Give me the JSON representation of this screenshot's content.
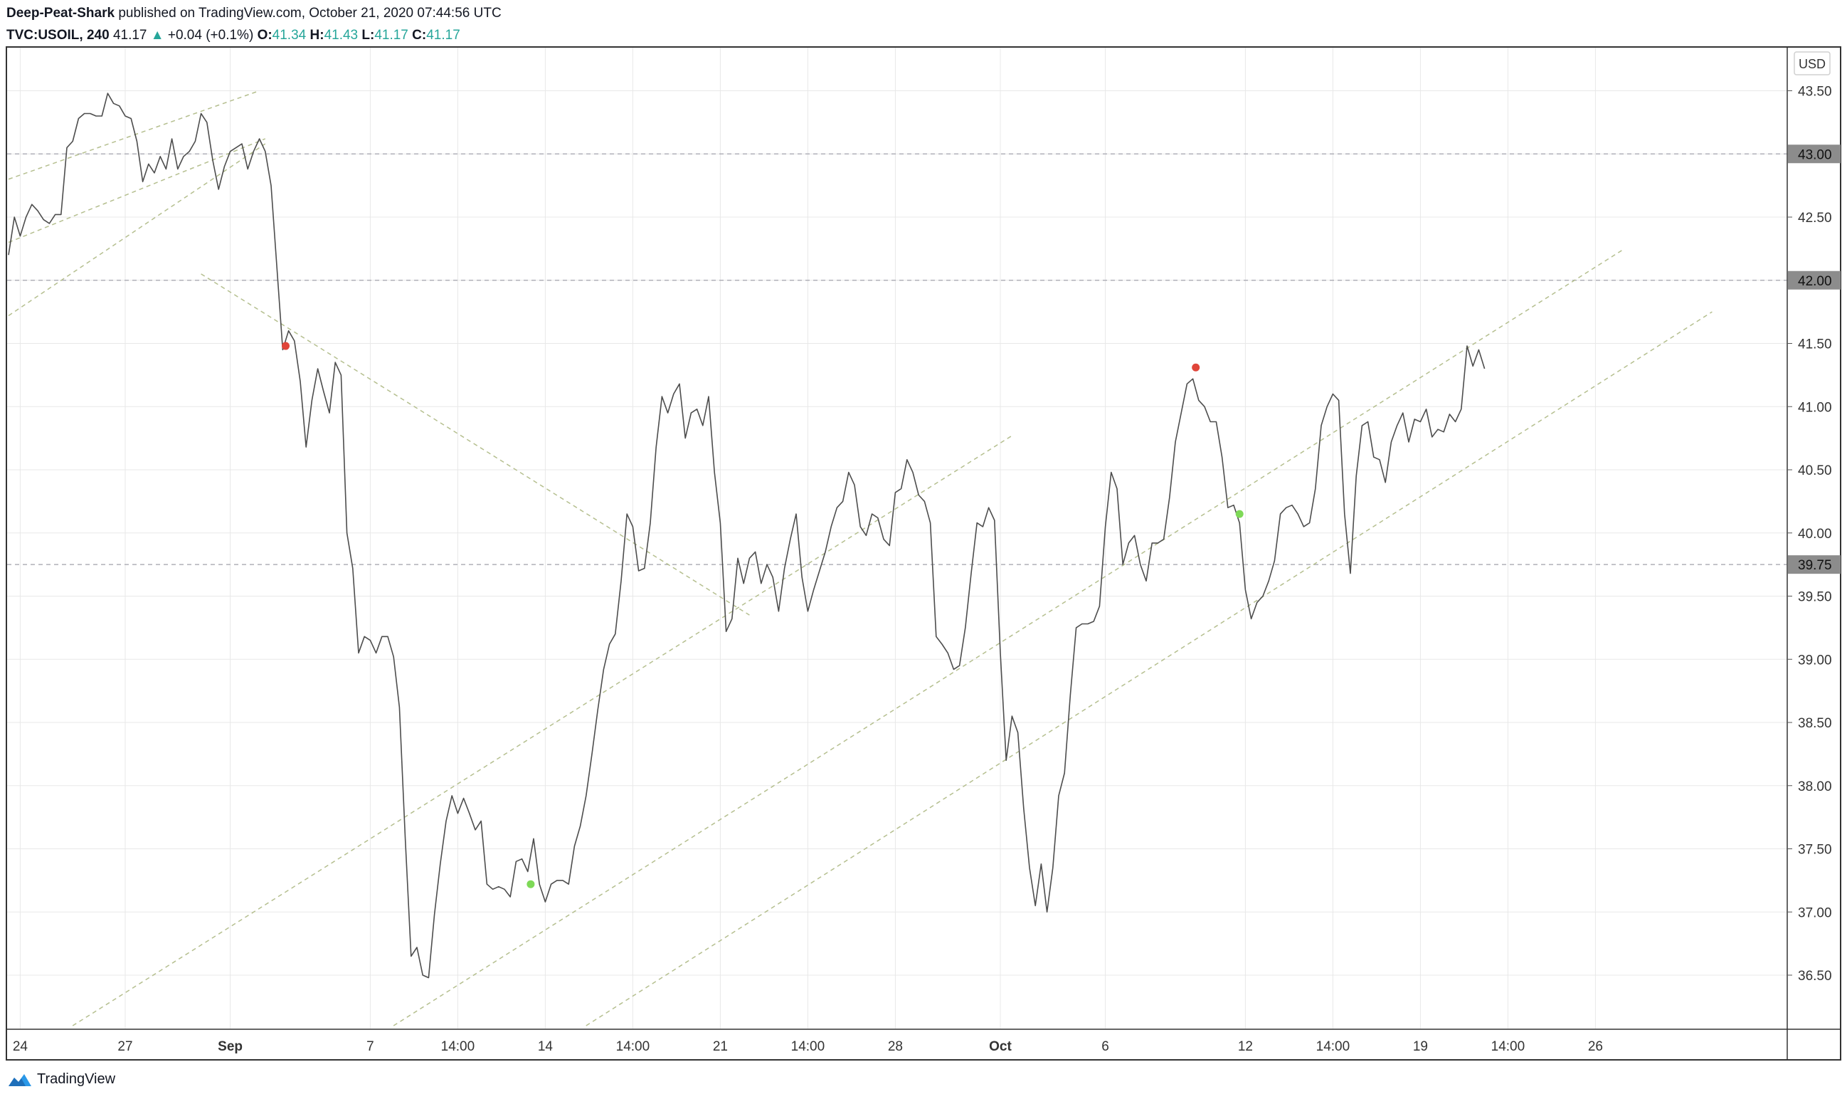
{
  "header": {
    "author": "Deep-Peat-Shark",
    "published_text": "published on TradingView.com, October 21, 2020 07:44:56 UTC",
    "symbol": "TVC:USOIL, 240",
    "last": "41.17",
    "change": "+0.04 (+0.1%)",
    "o_label": "O:",
    "o_value": "41.34",
    "h_label": "H:",
    "h_value": "41.43",
    "l_label": "L:",
    "l_value": "41.17",
    "c_label": "C:",
    "c_value": "41.17"
  },
  "footer": {
    "brand": "TradingView"
  },
  "colors": {
    "line": "#4d4d4d",
    "channel": "#b5bf8f",
    "hline": "#b0b0b8",
    "grid": "#e8e8e8",
    "red_dot": "#e0453a",
    "green_dot": "#7ed957",
    "label_bg": "#8c8c8c",
    "value_color": "#26a69a"
  },
  "chart_data": {
    "type": "line",
    "currency_label": "USD",
    "ylim": [
      36.1,
      43.85
    ],
    "xlim": [
      0,
      300
    ],
    "yticks": [
      "43.50",
      "43.00",
      "42.50",
      "42.00",
      "41.50",
      "41.00",
      "40.50",
      "40.00",
      "39.50",
      "39.00",
      "38.50",
      "38.00",
      "37.50",
      "37.00",
      "36.50"
    ],
    "price_labels": [
      "43.00",
      "42.00",
      "39.75"
    ],
    "xticks": [
      {
        "x": 2,
        "label": "24",
        "bold": false
      },
      {
        "x": 20,
        "label": "27",
        "bold": false
      },
      {
        "x": 38,
        "label": "Sep",
        "bold": true
      },
      {
        "x": 62,
        "label": "7",
        "bold": false
      },
      {
        "x": 77,
        "label": "14:00",
        "bold": false
      },
      {
        "x": 92,
        "label": "14",
        "bold": false
      },
      {
        "x": 107,
        "label": "14:00",
        "bold": false
      },
      {
        "x": 122,
        "label": "21",
        "bold": false
      },
      {
        "x": 137,
        "label": "14:00",
        "bold": false
      },
      {
        "x": 152,
        "label": "28",
        "bold": false
      },
      {
        "x": 170,
        "label": "Oct",
        "bold": true
      },
      {
        "x": 188,
        "label": "6",
        "bold": false
      },
      {
        "x": 212,
        "label": "12",
        "bold": false
      },
      {
        "x": 227,
        "label": "14:00",
        "bold": false
      },
      {
        "x": 242,
        "label": "19",
        "bold": false
      },
      {
        "x": 257,
        "label": "14:00",
        "bold": false
      },
      {
        "x": 272,
        "label": "26",
        "bold": false
      }
    ],
    "horizontal_lines": [
      43.0,
      42.0,
      39.75
    ],
    "series": [
      {
        "points": [
          [
            0,
            42.2
          ],
          [
            1,
            42.5
          ],
          [
            2,
            42.35
          ],
          [
            3,
            42.5
          ],
          [
            4,
            42.6
          ],
          [
            5,
            42.55
          ],
          [
            6,
            42.48
          ],
          [
            7,
            42.45
          ],
          [
            8,
            42.52
          ],
          [
            9,
            42.52
          ],
          [
            10,
            43.05
          ],
          [
            11,
            43.1
          ],
          [
            12,
            43.28
          ],
          [
            13,
            43.32
          ],
          [
            14,
            43.32
          ],
          [
            15,
            43.3
          ],
          [
            16,
            43.3
          ],
          [
            17,
            43.48
          ],
          [
            18,
            43.4
          ],
          [
            19,
            43.38
          ],
          [
            20,
            43.3
          ],
          [
            21,
            43.28
          ],
          [
            22,
            43.1
          ],
          [
            23,
            42.78
          ],
          [
            24,
            42.92
          ],
          [
            25,
            42.85
          ],
          [
            26,
            42.98
          ],
          [
            27,
            42.88
          ],
          [
            28,
            43.12
          ],
          [
            29,
            42.88
          ],
          [
            30,
            42.98
          ],
          [
            31,
            43.02
          ],
          [
            32,
            43.1
          ],
          [
            33,
            43.32
          ],
          [
            34,
            43.25
          ],
          [
            35,
            42.95
          ],
          [
            36,
            42.72
          ],
          [
            37,
            42.9
          ],
          [
            38,
            43.02
          ],
          [
            39,
            43.05
          ],
          [
            40,
            43.08
          ],
          [
            41,
            42.88
          ],
          [
            42,
            43.02
          ],
          [
            43,
            43.12
          ],
          [
            44,
            43.02
          ],
          [
            45,
            42.75
          ],
          [
            46,
            42.1
          ],
          [
            47,
            41.45
          ],
          [
            48,
            41.6
          ],
          [
            49,
            41.52
          ],
          [
            50,
            41.2
          ],
          [
            51,
            40.68
          ],
          [
            52,
            41.05
          ],
          [
            53,
            41.3
          ],
          [
            54,
            41.12
          ],
          [
            55,
            40.95
          ],
          [
            56,
            41.35
          ],
          [
            57,
            41.25
          ],
          [
            58,
            40.0
          ],
          [
            59,
            39.72
          ],
          [
            60,
            39.05
          ],
          [
            61,
            39.18
          ],
          [
            62,
            39.15
          ],
          [
            63,
            39.05
          ],
          [
            64,
            39.18
          ],
          [
            65,
            39.18
          ],
          [
            66,
            39.02
          ],
          [
            67,
            38.62
          ],
          [
            68,
            37.58
          ],
          [
            69,
            36.65
          ],
          [
            70,
            36.72
          ],
          [
            71,
            36.5
          ],
          [
            72,
            36.48
          ],
          [
            73,
            36.98
          ],
          [
            74,
            37.38
          ],
          [
            75,
            37.72
          ],
          [
            76,
            37.92
          ],
          [
            77,
            37.78
          ],
          [
            78,
            37.9
          ],
          [
            79,
            37.78
          ],
          [
            80,
            37.65
          ],
          [
            81,
            37.72
          ],
          [
            82,
            37.22
          ],
          [
            83,
            37.18
          ],
          [
            84,
            37.2
          ],
          [
            85,
            37.18
          ],
          [
            86,
            37.12
          ],
          [
            87,
            37.4
          ],
          [
            88,
            37.42
          ],
          [
            89,
            37.32
          ],
          [
            90,
            37.58
          ],
          [
            91,
            37.22
          ],
          [
            92,
            37.08
          ],
          [
            93,
            37.22
          ],
          [
            94,
            37.25
          ],
          [
            95,
            37.25
          ],
          [
            96,
            37.22
          ],
          [
            97,
            37.52
          ],
          [
            98,
            37.68
          ],
          [
            99,
            37.92
          ],
          [
            100,
            38.25
          ],
          [
            101,
            38.6
          ],
          [
            102,
            38.92
          ],
          [
            103,
            39.12
          ],
          [
            104,
            39.2
          ],
          [
            105,
            39.62
          ],
          [
            106,
            40.15
          ],
          [
            107,
            40.05
          ],
          [
            108,
            39.7
          ],
          [
            109,
            39.72
          ],
          [
            110,
            40.08
          ],
          [
            111,
            40.68
          ],
          [
            112,
            41.08
          ],
          [
            113,
            40.95
          ],
          [
            114,
            41.1
          ],
          [
            115,
            41.18
          ],
          [
            116,
            40.75
          ],
          [
            117,
            40.95
          ],
          [
            118,
            40.98
          ],
          [
            119,
            40.85
          ],
          [
            120,
            41.08
          ],
          [
            121,
            40.48
          ],
          [
            122,
            40.08
          ],
          [
            123,
            39.22
          ],
          [
            124,
            39.32
          ],
          [
            125,
            39.8
          ],
          [
            126,
            39.6
          ],
          [
            127,
            39.8
          ],
          [
            128,
            39.85
          ],
          [
            129,
            39.6
          ],
          [
            130,
            39.75
          ],
          [
            131,
            39.65
          ],
          [
            132,
            39.38
          ],
          [
            133,
            39.72
          ],
          [
            134,
            39.95
          ],
          [
            135,
            40.15
          ],
          [
            136,
            39.65
          ],
          [
            137,
            39.38
          ],
          [
            138,
            39.55
          ],
          [
            139,
            39.7
          ],
          [
            140,
            39.85
          ],
          [
            141,
            40.05
          ],
          [
            142,
            40.2
          ],
          [
            143,
            40.25
          ],
          [
            144,
            40.48
          ],
          [
            145,
            40.38
          ],
          [
            146,
            40.05
          ],
          [
            147,
            39.98
          ],
          [
            148,
            40.15
          ],
          [
            149,
            40.12
          ],
          [
            150,
            39.95
          ],
          [
            151,
            39.9
          ],
          [
            152,
            40.32
          ],
          [
            153,
            40.35
          ],
          [
            154,
            40.58
          ],
          [
            155,
            40.48
          ],
          [
            156,
            40.3
          ],
          [
            157,
            40.25
          ],
          [
            158,
            40.08
          ],
          [
            159,
            39.18
          ],
          [
            160,
            39.12
          ],
          [
            161,
            39.05
          ],
          [
            162,
            38.92
          ],
          [
            163,
            38.95
          ],
          [
            164,
            39.25
          ],
          [
            165,
            39.68
          ],
          [
            166,
            40.08
          ],
          [
            167,
            40.05
          ],
          [
            168,
            40.2
          ],
          [
            169,
            40.1
          ],
          [
            170,
            39.05
          ],
          [
            171,
            38.2
          ],
          [
            172,
            38.55
          ],
          [
            173,
            38.42
          ],
          [
            174,
            37.82
          ],
          [
            175,
            37.35
          ],
          [
            176,
            37.05
          ],
          [
            177,
            37.38
          ],
          [
            178,
            37.0
          ],
          [
            179,
            37.35
          ],
          [
            180,
            37.92
          ],
          [
            181,
            38.1
          ],
          [
            182,
            38.72
          ],
          [
            183,
            39.25
          ],
          [
            184,
            39.28
          ],
          [
            185,
            39.28
          ],
          [
            186,
            39.3
          ],
          [
            187,
            39.42
          ],
          [
            188,
            40.05
          ],
          [
            189,
            40.48
          ],
          [
            190,
            40.35
          ],
          [
            191,
            39.75
          ],
          [
            192,
            39.92
          ],
          [
            193,
            39.98
          ],
          [
            194,
            39.75
          ],
          [
            195,
            39.62
          ],
          [
            196,
            39.92
          ],
          [
            197,
            39.92
          ],
          [
            198,
            39.95
          ],
          [
            199,
            40.28
          ],
          [
            200,
            40.72
          ],
          [
            201,
            40.95
          ],
          [
            202,
            41.18
          ],
          [
            203,
            41.22
          ],
          [
            204,
            41.05
          ],
          [
            205,
            41.0
          ],
          [
            206,
            40.88
          ],
          [
            207,
            40.88
          ],
          [
            208,
            40.6
          ],
          [
            209,
            40.2
          ],
          [
            210,
            40.22
          ],
          [
            211,
            40.08
          ],
          [
            212,
            39.55
          ],
          [
            213,
            39.32
          ],
          [
            214,
            39.45
          ],
          [
            215,
            39.5
          ],
          [
            216,
            39.62
          ],
          [
            217,
            39.78
          ],
          [
            218,
            40.15
          ],
          [
            219,
            40.2
          ],
          [
            220,
            40.22
          ],
          [
            221,
            40.15
          ],
          [
            222,
            40.05
          ],
          [
            223,
            40.08
          ],
          [
            224,
            40.35
          ],
          [
            225,
            40.85
          ],
          [
            226,
            41.0
          ],
          [
            227,
            41.1
          ],
          [
            228,
            41.05
          ],
          [
            229,
            40.15
          ],
          [
            230,
            39.68
          ],
          [
            231,
            40.45
          ],
          [
            232,
            40.85
          ],
          [
            233,
            40.88
          ],
          [
            234,
            40.6
          ],
          [
            235,
            40.58
          ],
          [
            236,
            40.4
          ],
          [
            237,
            40.72
          ],
          [
            238,
            40.85
          ],
          [
            239,
            40.95
          ],
          [
            240,
            40.72
          ],
          [
            241,
            40.9
          ],
          [
            242,
            40.88
          ],
          [
            243,
            40.98
          ],
          [
            244,
            40.76
          ],
          [
            245,
            40.82
          ],
          [
            246,
            40.8
          ],
          [
            247,
            40.94
          ],
          [
            248,
            40.88
          ],
          [
            249,
            40.98
          ],
          [
            250,
            41.48
          ],
          [
            251,
            41.32
          ],
          [
            252,
            41.45
          ],
          [
            253,
            41.3
          ]
        ]
      }
    ],
    "channel_lines": [
      {
        "from": [
          0,
          42.8
        ],
        "to": [
          43,
          43.5
        ]
      },
      {
        "from": [
          0,
          42.3
        ],
        "to": [
          44,
          43.12
        ]
      },
      {
        "from": [
          0,
          41.72
        ],
        "to": [
          44,
          43.08
        ]
      },
      {
        "from": [
          33,
          42.05
        ],
        "to": [
          127,
          39.35
        ]
      },
      {
        "from": [
          11,
          36.1
        ],
        "to": [
          172,
          40.77
        ]
      },
      {
        "from": [
          66,
          36.1
        ],
        "to": [
          277,
          42.25
        ]
      },
      {
        "from": [
          99,
          36.1
        ],
        "to": [
          292,
          41.75
        ]
      }
    ],
    "markers": [
      {
        "x": 47.5,
        "y": 41.48,
        "color": "red"
      },
      {
        "x": 89.5,
        "y": 37.22,
        "color": "green"
      },
      {
        "x": 203.5,
        "y": 41.31,
        "color": "red"
      },
      {
        "x": 211,
        "y": 40.15,
        "color": "green"
      }
    ]
  }
}
